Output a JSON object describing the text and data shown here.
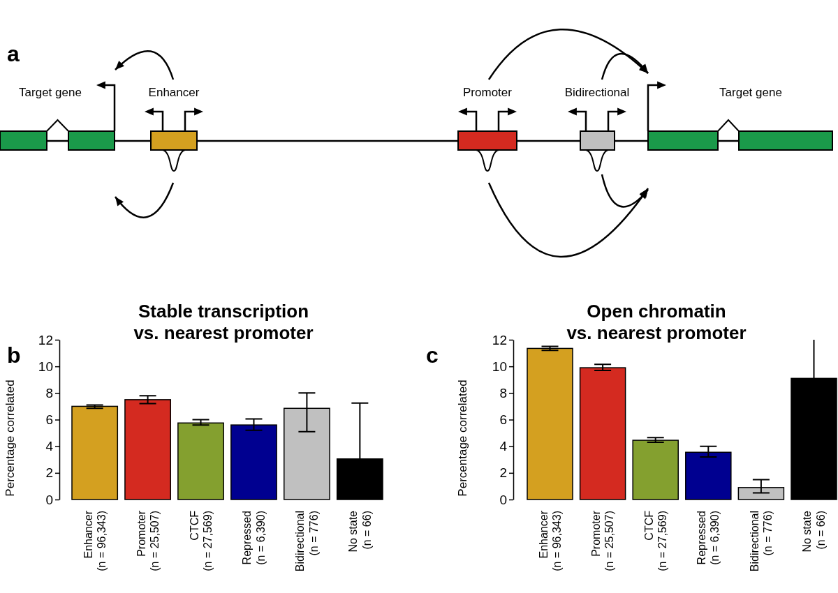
{
  "chart_data": [
    {
      "type": "other",
      "title": "a",
      "annotations": [
        "Target gene",
        "Enhancer",
        "Promoter",
        "Bidirectional",
        "Target gene"
      ]
    },
    {
      "type": "bar",
      "title": "Stable transcription\nvs. nearest promoter",
      "annotations": [
        "b"
      ],
      "ylabel": "Percentage correlated",
      "categories": [
        "Enhancer\n(n = 96,343)",
        "Promoter\n(n = 25,507)",
        "CTCF\n(n = 27,569)",
        "Repressed\n(n = 6,390)",
        "Bidirectional\n(n = 776)",
        "No state\n(n = 66)"
      ],
      "values": [
        7.0,
        7.5,
        5.75,
        5.6,
        6.85,
        3.05
      ],
      "errors": [
        [
          6.85,
          7.1
        ],
        [
          7.2,
          7.8
        ],
        [
          5.6,
          6.0
        ],
        [
          5.2,
          6.05
        ],
        [
          5.1,
          8.0
        ],
        [
          3.05,
          7.25
        ]
      ],
      "colors": [
        "#d4a020",
        "#d42a20",
        "#84a02f",
        "#000090",
        "#c0c0c0",
        "#000000"
      ],
      "ylim": [
        0,
        12
      ],
      "yticks": [
        0,
        2,
        4,
        6,
        8,
        10,
        12
      ]
    },
    {
      "type": "bar",
      "title": "Open chromatin\nvs. nearest promoter",
      "annotations": [
        "c"
      ],
      "ylabel": "Percentage correlated",
      "categories": [
        "Enhancer\n(n = 96,343)",
        "Promoter\n(n = 25,507)",
        "CTCF\n(n = 27,569)",
        "Repressed\n(n = 6,390)",
        "Bidirectional\n(n = 776)",
        "No state\n(n = 66)"
      ],
      "values": [
        11.35,
        9.9,
        4.45,
        3.55,
        0.9,
        9.1
      ],
      "errors": [
        [
          11.2,
          11.5
        ],
        [
          9.7,
          10.15
        ],
        [
          4.3,
          4.65
        ],
        [
          3.2,
          4.0
        ],
        [
          0.5,
          1.5
        ],
        [
          9.1,
          12
        ]
      ],
      "colors": [
        "#d4a020",
        "#d42a20",
        "#84a02f",
        "#000090",
        "#c0c0c0",
        "#000000"
      ],
      "ylim": [
        0,
        12
      ],
      "yticks": [
        0,
        2,
        4,
        6,
        8,
        10,
        12
      ]
    }
  ]
}
